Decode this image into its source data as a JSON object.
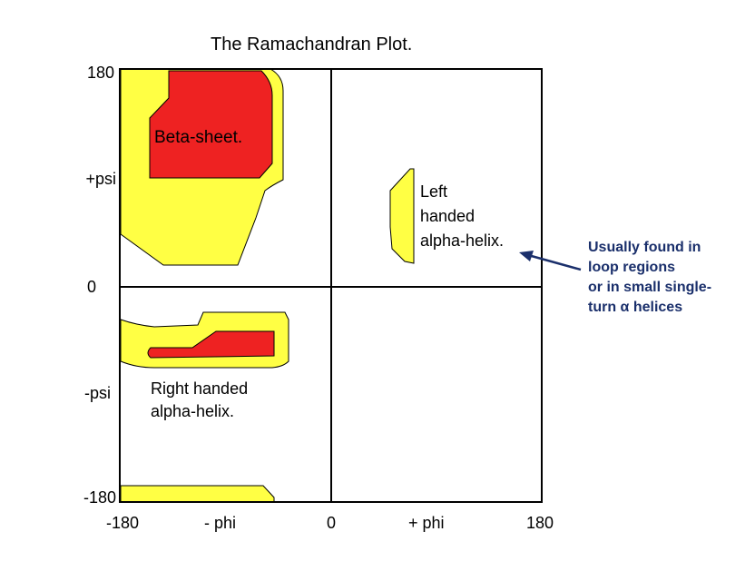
{
  "title": "The Ramachandran Plot.",
  "axes": {
    "y_ticks": [
      "180",
      "+psi",
      "0",
      "-psi",
      "-180"
    ],
    "x_ticks": [
      "-180",
      "- phi",
      "0",
      "+ phi",
      "180"
    ]
  },
  "regions": {
    "beta_sheet": "Beta-sheet.",
    "left_handed": [
      "Left",
      "handed",
      "alpha-helix."
    ],
    "right_handed": [
      "Right handed",
      "alpha-helix."
    ]
  },
  "note": {
    "lines": [
      "Usually found in",
      "loop regions",
      "or in small single-",
      "turn α helices"
    ],
    "color": "#1a2f6b"
  },
  "colors": {
    "allowed": "#ffff44",
    "favored": "#ee2222",
    "frame": "#000000"
  }
}
